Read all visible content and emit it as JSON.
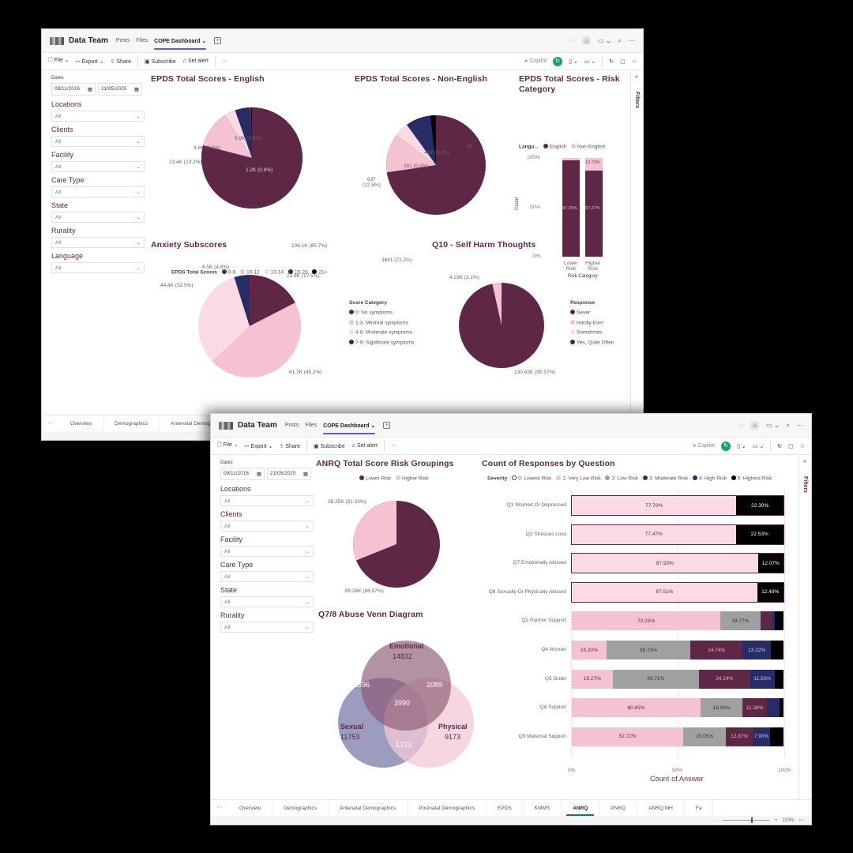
{
  "app": {
    "team_name": "Data Team",
    "top_tabs": [
      "Posts",
      "Files",
      "COPE Dashboard ⌄"
    ],
    "toolbar": {
      "file": "File ⌄",
      "export": "Export ⌄",
      "share": "Share",
      "subscribe": "Subscribe",
      "set_alert": "Set alert",
      "more": "···",
      "copilot": "Copilot"
    },
    "filters_label": "Filters",
    "zoom_level": "110%"
  },
  "slicers": {
    "dates_label": "Dates",
    "date_from": "09/11/2016",
    "date_to": "21/05/2025",
    "window1": [
      {
        "label": "Locations",
        "value": "All"
      },
      {
        "label": "Clients",
        "value": "All"
      },
      {
        "label": "Facility",
        "value": "All"
      },
      {
        "label": "Care Type",
        "value": "All"
      },
      {
        "label": "State",
        "value": "All"
      },
      {
        "label": "Rurality",
        "value": "All"
      },
      {
        "label": "Language",
        "value": "All"
      }
    ],
    "window2": [
      {
        "label": "Locations",
        "value": "All"
      },
      {
        "label": "Clients",
        "value": "All"
      },
      {
        "label": "Facility",
        "value": "All"
      },
      {
        "label": "Care Type",
        "value": "All"
      },
      {
        "label": "State",
        "value": "All"
      },
      {
        "label": "Rurality",
        "value": "All"
      }
    ]
  },
  "page_tabs_window1": [
    "Overview",
    "Demographics",
    "Antenatal Demographics"
  ],
  "page_tabs_window2": [
    "Overview",
    "Demographics",
    "Antenatal Demographics",
    "Postnatal Demographics",
    "EPDS",
    "KMMS",
    "ANRQ",
    "PNRQ",
    "ANRQ MH",
    "Fa"
  ],
  "active_page_window2": "ANRQ",
  "colors": {
    "maroon": "#5e2745",
    "pink": "#f4c2d2",
    "light_pink": "#fadbe4",
    "navy": "#272b66",
    "black": "#000000",
    "grey": "#a0a0a0",
    "title": "#5e2a45"
  },
  "chart_data": [
    {
      "id": "epds_english",
      "type": "pie",
      "title": "EPDS Total Scores - English",
      "legend_title": "EPDS Total Scores",
      "categories": [
        "0-9",
        "10-12",
        "13-14",
        "15-20",
        "21+"
      ],
      "values": [
        106100,
        13400,
        4800,
        5900,
        1200
      ],
      "labels": [
        "106.1K (80.7%)",
        "13.4K (10.2%)",
        "4.8K (3.6%)",
        "5.9K (4.5%)",
        "1.2K (0.9%)"
      ]
    },
    {
      "id": "epds_non_english",
      "type": "pie",
      "title": "EPDS Total Scores - Non-English",
      "categories": [
        "0-9",
        "10-12",
        "13-14",
        "15-20",
        "21+"
      ],
      "values": [
        3691,
        637,
        281,
        413,
        93
      ],
      "labels": [
        "3691 (72.2%)",
        "637 (12.5%)",
        "281 (5.5%)",
        "413 (8.1%)",
        "93 (1.8%)"
      ]
    },
    {
      "id": "epds_risk_category",
      "type": "bar",
      "stacked": "100%",
      "title": "EPDS Total Scores - Risk Category",
      "legend_title": "Langu...",
      "categories": [
        "Lower Risk",
        "Higher Risk"
      ],
      "series": [
        {
          "name": "English",
          "values": [
            97.35,
            87.27
          ]
        },
        {
          "name": "Non-English",
          "values": [
            2.65,
            12.73
          ]
        }
      ],
      "xlabel": "Risk Category",
      "ylabel": "Count",
      "yticks": [
        "100%",
        "50%",
        "0%"
      ],
      "data_labels": {
        "english": [
          "97.35%",
          "87.27%"
        ],
        "non_english_higher": "12.73%"
      }
    },
    {
      "id": "anxiety_subscores",
      "type": "pie",
      "title": "Anxiety Subscores",
      "legend_title": "Score Category",
      "categories": [
        "0: No symptoms",
        "1-3: Minimal symptoms",
        "4-6: Moderate symptoms",
        "7-9: Significant symptoms"
      ],
      "values": [
        23900,
        61700,
        44400,
        6500
      ],
      "labels": [
        "23.9K (17.5%)",
        "61.7K (45.2%)",
        "44.4K (32.5%)",
        "6.5K (4.8%)"
      ]
    },
    {
      "id": "q10_self_harm",
      "type": "pie",
      "title": "Q10 - Self Harm Thoughts",
      "legend_title": "Response",
      "categories": [
        "Never",
        "Hardly Ever",
        "Sometimes",
        "Yes, Quite Often"
      ],
      "values": [
        130430,
        4230,
        1800,
        40
      ],
      "labels": [
        "130.43K (95.57%)",
        "4.23K (3.1%)"
      ]
    },
    {
      "id": "anrq_risk_groupings",
      "type": "pie",
      "title": "ANRQ Total Score Risk Groupings",
      "categories": [
        "Lower Risk",
        "Higher Risk"
      ],
      "values": [
        85240,
        38350
      ],
      "labels": [
        "85.24K (68.97%)",
        "38.35K (31.03%)"
      ]
    },
    {
      "id": "abuse_venn",
      "type": "venn",
      "title": "Q7/8 Abuse Venn Diagram",
      "sets": [
        {
          "name": "Emotional",
          "value": 14832
        },
        {
          "name": "Sexual",
          "value": 11753
        },
        {
          "name": "Physical",
          "value": 9173
        }
      ],
      "intersections": {
        "emotional_sexual": 1596,
        "emotional_physical": 2089,
        "sexual_physical": 1723,
        "all_three": 3990
      }
    },
    {
      "id": "responses_by_question",
      "type": "bar",
      "orientation": "horizontal",
      "stacked": "100%",
      "title": "Count of Responses by Question",
      "legend_title": "Severity",
      "series_names": [
        "0: Lowest Risk",
        "1: Very Low Risk",
        "2: Low Risk",
        "3: Moderate Risk",
        "4: High Risk",
        "5: Highest Risk"
      ],
      "categories": [
        "Q1 Worried Or Depressed",
        "Q3 Stresses Loss",
        "Q7 Emotionally Abused",
        "Q8 Sexually Or Physically Abused",
        "Q2 Partner Support",
        "Q4 Worrier",
        "Q5 Order",
        "Q6 Support",
        "Q9 Maternal Support"
      ],
      "rows": [
        {
          "q": "Q1 Worried Or Depressed",
          "segments": [
            {
              "s": 0,
              "v": 77.7,
              "label": "77.70%"
            },
            {
              "s": 5,
              "v": 22.3,
              "label": "22.30%"
            }
          ]
        },
        {
          "q": "Q3 Stresses Loss",
          "segments": [
            {
              "s": 0,
              "v": 77.47,
              "label": "77.47%"
            },
            {
              "s": 5,
              "v": 22.53,
              "label": "22.53%"
            }
          ]
        },
        {
          "q": "Q7 Emotionally Abused",
          "segments": [
            {
              "s": 0,
              "v": 87.93,
              "label": "87.93%"
            },
            {
              "s": 5,
              "v": 12.07,
              "label": "12.07%"
            }
          ]
        },
        {
          "q": "Q8 Sexually Or Physically Abused",
          "segments": [
            {
              "s": 0,
              "v": 87.51,
              "label": "87.51%"
            },
            {
              "s": 5,
              "v": 12.49,
              "label": "12.49%"
            }
          ]
        },
        {
          "q": "Q2 Partner Support",
          "segments": [
            {
              "s": 1,
              "v": 70.23,
              "label": "70.23%"
            },
            {
              "s": 2,
              "v": 18.77,
              "label": "18.77%"
            },
            {
              "s": 3,
              "v": 5.6,
              "label": ""
            },
            {
              "s": 4,
              "v": 1.4,
              "label": ""
            },
            {
              "s": 5,
              "v": 4.0,
              "label": ""
            }
          ]
        },
        {
          "q": "Q4 Worrier",
          "segments": [
            {
              "s": 1,
              "v": 16.3,
              "label": "16.30%"
            },
            {
              "s": 2,
              "v": 39.73,
              "label": "39.73%"
            },
            {
              "s": 3,
              "v": 24.74,
              "label": "24.74%"
            },
            {
              "s": 4,
              "v": 13.22,
              "label": "13.22%"
            },
            {
              "s": 5,
              "v": 6.01,
              "label": ""
            }
          ]
        },
        {
          "q": "Q5 Order",
          "segments": [
            {
              "s": 1,
              "v": 19.27,
              "label": "19.27%"
            },
            {
              "s": 2,
              "v": 40.71,
              "label": "40.71%"
            },
            {
              "s": 3,
              "v": 24.24,
              "label": "24.24%"
            },
            {
              "s": 4,
              "v": 11.5,
              "label": "11.50%"
            },
            {
              "s": 5,
              "v": 4.28,
              "label": ""
            }
          ]
        },
        {
          "q": "Q6 Support",
          "segments": [
            {
              "s": 1,
              "v": 60.85,
              "label": "60.85%"
            },
            {
              "s": 2,
              "v": 19.93,
              "label": "19.93%"
            },
            {
              "s": 3,
              "v": 11.38,
              "label": "11.38%"
            },
            {
              "s": 4,
              "v": 6.0,
              "label": ""
            },
            {
              "s": 5,
              "v": 1.84,
              "label": ""
            }
          ]
        },
        {
          "q": "Q9 Maternal Support",
          "segments": [
            {
              "s": 1,
              "v": 52.72,
              "label": "52.72%"
            },
            {
              "s": 2,
              "v": 20.05,
              "label": "20.05%"
            },
            {
              "s": 3,
              "v": 12.87,
              "label": "12.87%"
            },
            {
              "s": 4,
              "v": 7.9,
              "label": "7.90%"
            },
            {
              "s": 5,
              "v": 6.46,
              "label": ""
            }
          ]
        }
      ],
      "xlabel": "Count of Answer",
      "xticks": [
        "0%",
        "50%",
        "100%"
      ]
    }
  ]
}
